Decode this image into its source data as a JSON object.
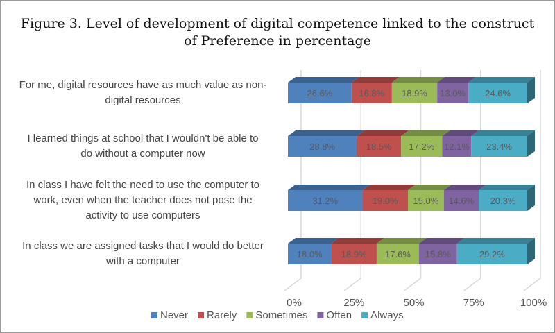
{
  "chart_data": {
    "type": "bar",
    "orientation": "horizontal-stacked-100-3d",
    "title": "Figure 3. Level of development of digital competence linked to the construct of Preference in percentage",
    "title_lines": [
      "Figure 3. Level of development of digital competence linked to the construct",
      "of Preference in percentage"
    ],
    "categories": [
      "For me, digital resources have as much value as non-digital resources",
      "I learned things at school that I wouldn't be able to do without a computer now",
      "In class I have felt the need to use the computer to work, even when the teacher does not pose the activity to use computers",
      "In class we are assigned tasks that I would do better with a computer"
    ],
    "category_lines": [
      [
        "For me, digital resources have as much value as non-",
        "digital resources"
      ],
      [
        "I learned things at school that I wouldn't be able to",
        "do without a computer now"
      ],
      [
        "In class I have felt the need to use the computer to",
        "work, even when the teacher does not pose the",
        "activity to use computers"
      ],
      [
        "In class we are assigned tasks that I would do better",
        "with a computer"
      ]
    ],
    "series": [
      {
        "name": "Never",
        "color": "#4f81bd",
        "values": [
          26.6,
          28.8,
          31.2,
          18.0
        ]
      },
      {
        "name": "Rarely",
        "color": "#c0504d",
        "values": [
          16.8,
          18.5,
          19.0,
          18.9
        ]
      },
      {
        "name": "Sometimes",
        "color": "#9bbb59",
        "values": [
          18.9,
          17.2,
          15.0,
          17.6
        ]
      },
      {
        "name": "Often",
        "color": "#8064a2",
        "values": [
          13.0,
          12.1,
          14.6,
          15.8
        ]
      },
      {
        "name": "Always",
        "color": "#4bacc6",
        "values": [
          24.6,
          23.4,
          20.3,
          29.2
        ]
      }
    ],
    "x_ticks": [
      "0%",
      "25%",
      "50%",
      "75%",
      "100%"
    ],
    "xlim": [
      0,
      100
    ],
    "grid": true,
    "legend": "bottom"
  }
}
